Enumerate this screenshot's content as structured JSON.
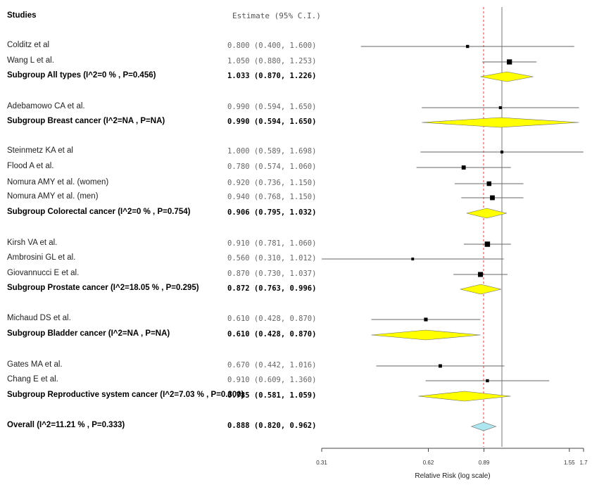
{
  "chart_data": {
    "type": "forest",
    "header": {
      "studies": "Studies",
      "estimate": "Estimate (95% C.I.)"
    },
    "xlabel": "Relative Risk (log scale)",
    "x_scale": "log",
    "xlim": [
      0.31,
      1.7
    ],
    "ticks": [
      {
        "value": 0.31,
        "label": "0.31"
      },
      {
        "value": 0.62,
        "label": "0.62"
      },
      {
        "value": 0.89,
        "label": "0.89"
      },
      {
        "value": 1.55,
        "label": "1.55"
      },
      {
        "value": 1.7,
        "label": "1.7"
      }
    ],
    "reference_line": 1.0,
    "overall_line": 0.888,
    "rows": [
      {
        "kind": "study",
        "label": "Colditz et al",
        "est": 0.8,
        "lo": 0.4,
        "hi": 1.6,
        "text": "0.800 (0.400, 1.600)",
        "weight": 1.2
      },
      {
        "kind": "study",
        "label": "Wang L et al.",
        "est": 1.05,
        "lo": 0.88,
        "hi": 1.253,
        "text": "1.050 (0.880, 1.253)",
        "weight": 2.4
      },
      {
        "kind": "subgroup",
        "label": "Subgroup All types (I^2=0 % , P=0.456)",
        "est": 1.033,
        "lo": 0.87,
        "hi": 1.226,
        "text": "1.033 (0.870, 1.226)"
      },
      {
        "kind": "study",
        "label": "Adebamowo CA et al.",
        "est": 0.99,
        "lo": 0.594,
        "hi": 1.65,
        "text": "0.990 (0.594, 1.650)",
        "weight": 1.1
      },
      {
        "kind": "subgroup",
        "label": "Subgroup Breast cancer (I^2=NA , P=NA)",
        "est": 0.99,
        "lo": 0.594,
        "hi": 1.65,
        "text": "0.990 (0.594, 1.650)"
      },
      {
        "kind": "study",
        "label": "Steinmetz KA et al",
        "est": 1.0,
        "lo": 0.589,
        "hi": 1.698,
        "text": "1.000 (0.589, 1.698)",
        "weight": 1.1
      },
      {
        "kind": "study",
        "label": "Flood A et al.",
        "est": 0.78,
        "lo": 0.574,
        "hi": 1.06,
        "text": "0.780 (0.574, 1.060)",
        "weight": 1.8
      },
      {
        "kind": "study",
        "label": "Nomura AMY et al. (women)",
        "est": 0.92,
        "lo": 0.736,
        "hi": 1.15,
        "text": "0.920 (0.736, 1.150)",
        "weight": 2.1
      },
      {
        "kind": "study",
        "label": "Nomura AMY et al. (men)",
        "est": 0.94,
        "lo": 0.768,
        "hi": 1.15,
        "text": "0.940 (0.768, 1.150)",
        "weight": 2.2
      },
      {
        "kind": "subgroup",
        "label": "Subgroup Colorectal cancer (I^2=0 % , P=0.754)",
        "est": 0.906,
        "lo": 0.795,
        "hi": 1.032,
        "text": "0.906 (0.795, 1.032)"
      },
      {
        "kind": "study",
        "label": "Kirsh VA et al.",
        "est": 0.91,
        "lo": 0.781,
        "hi": 1.06,
        "text": "0.910 (0.781, 1.060)",
        "weight": 2.5
      },
      {
        "kind": "study",
        "label": "Ambrosini GL et al.",
        "est": 0.56,
        "lo": 0.31,
        "hi": 1.012,
        "text": "0.560 (0.310, 1.012)",
        "weight": 1.0
      },
      {
        "kind": "study",
        "label": "Giovannucci E et al.",
        "est": 0.87,
        "lo": 0.73,
        "hi": 1.037,
        "text": "0.870 (0.730, 1.037)",
        "weight": 2.3
      },
      {
        "kind": "subgroup",
        "label": "Subgroup Prostate cancer (I^2=18.05 % , P=0.295)",
        "est": 0.872,
        "lo": 0.763,
        "hi": 0.996,
        "text": "0.872 (0.763, 0.996)"
      },
      {
        "kind": "study",
        "label": "Michaud DS et al.",
        "est": 0.61,
        "lo": 0.428,
        "hi": 0.87,
        "text": "0.610 (0.428, 0.870)",
        "weight": 1.5
      },
      {
        "kind": "subgroup",
        "label": "Subgroup Bladder cancer (I^2=NA , P=NA)",
        "est": 0.61,
        "lo": 0.428,
        "hi": 0.87,
        "text": "0.610 (0.428, 0.870)"
      },
      {
        "kind": "study",
        "label": "Gates MA et al.",
        "est": 0.67,
        "lo": 0.442,
        "hi": 1.016,
        "text": "0.670 (0.442, 1.016)",
        "weight": 1.4
      },
      {
        "kind": "study",
        "label": "Chang E et al.",
        "est": 0.91,
        "lo": 0.609,
        "hi": 1.36,
        "text": "0.910 (0.609, 1.360)",
        "weight": 1.2
      },
      {
        "kind": "subgroup",
        "label": "Subgroup Reproductive system cancer (I^2=7.03 % , P=0.300)",
        "est": 0.785,
        "lo": 0.581,
        "hi": 1.059,
        "text": "0.785 (0.581, 1.059)"
      },
      {
        "kind": "overall",
        "label": "Overall (I^2=11.21 % , P=0.333)",
        "est": 0.888,
        "lo": 0.82,
        "hi": 0.962,
        "text": "0.888 (0.820, 0.962)"
      }
    ],
    "colors": {
      "subgroup": "#ffff00",
      "overall": "#aee6f0",
      "line": "#555555",
      "dash": "#e04040"
    }
  }
}
